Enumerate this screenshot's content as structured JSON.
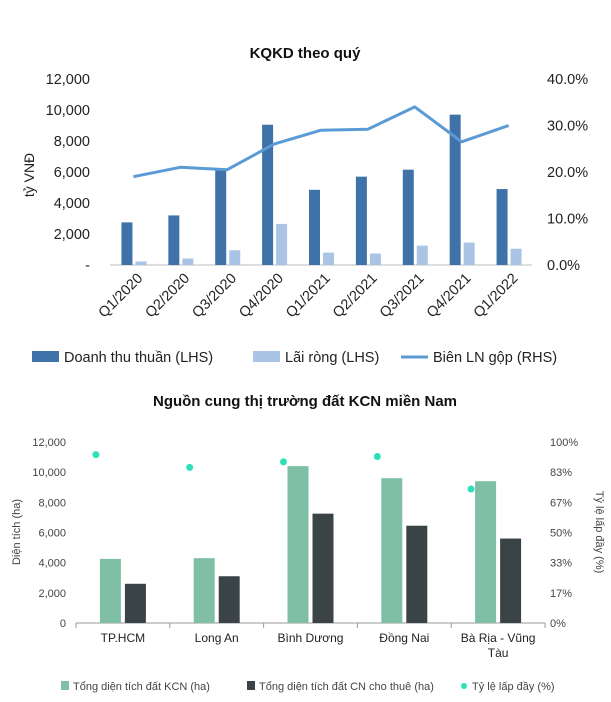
{
  "chart_data": [
    {
      "type": "bar",
      "title": "KQKD theo quý",
      "ylabel": "tỷ VNĐ",
      "ylim": [
        0,
        12000
      ],
      "y2lim": [
        0,
        40
      ],
      "y_ticks": [
        "-",
        "2,000",
        "4,000",
        "6,000",
        "8,000",
        "10,000",
        "12,000"
      ],
      "y2_ticks": [
        "0.0%",
        "10.0%",
        "20.0%",
        "30.0%",
        "40.0%"
      ],
      "categories": [
        "Q1/2020",
        "Q2/2020",
        "Q3/2020",
        "Q4/2020",
        "Q1/2021",
        "Q2/2021",
        "Q3/2021",
        "Q4/2021",
        "Q1/2022"
      ],
      "series": [
        {
          "name": "Doanh thu thuần (LHS)",
          "kind": "bar",
          "axis": "left",
          "color": "#3f72a9",
          "values": [
            2750,
            3200,
            6100,
            9050,
            4850,
            5700,
            6150,
            9700,
            4900
          ]
        },
        {
          "name": "Lãi ròng (LHS)",
          "kind": "bar",
          "axis": "left",
          "color": "#aac4e5",
          "values": [
            230,
            420,
            950,
            2650,
            800,
            740,
            1250,
            1450,
            1050
          ]
        },
        {
          "name": "Biên LN gộp (RHS)",
          "kind": "line",
          "axis": "right",
          "color": "#5b9bd5",
          "values": [
            19.0,
            21.0,
            20.5,
            26.0,
            29.0,
            29.2,
            34.0,
            26.5,
            30.0
          ]
        }
      ],
      "legend_position": "bottom"
    },
    {
      "type": "bar",
      "title": "Nguồn cung thị trường đất KCN miền Nam",
      "ylabel": "Diện tích (ha)",
      "y2label": "Tỷ lệ lấp đầy (%)",
      "ylim": [
        0,
        12000
      ],
      "y2lim": [
        0,
        100
      ],
      "y_ticks": [
        "0",
        "2,000",
        "4,000",
        "6,000",
        "8,000",
        "10,000",
        "12,000"
      ],
      "y2_ticks": [
        "0%",
        "17%",
        "33%",
        "50%",
        "67%",
        "83%",
        "100%"
      ],
      "categories": [
        [
          "TP.HCM"
        ],
        [
          "Long An"
        ],
        [
          "Bình Dương"
        ],
        [
          "Đồng Nai"
        ],
        [
          "Bà Rịa - Vũng",
          "Tàu"
        ]
      ],
      "series": [
        {
          "name": "Tổng diện tích đất KCN (ha)",
          "kind": "bar",
          "axis": "left",
          "color": "#7fbfa6",
          "values": [
            4250,
            4300,
            10400,
            9600,
            9400
          ]
        },
        {
          "name": "Tổng diện tích đất CN cho thuê (ha)",
          "kind": "bar",
          "axis": "left",
          "color": "#3a4446",
          "values": [
            2600,
            3100,
            7250,
            6450,
            5600
          ]
        },
        {
          "name": "Tỷ lệ lấp đầy (%)",
          "kind": "scatter",
          "axis": "right",
          "color": "#2ee0b8",
          "values": [
            93,
            86,
            89,
            92,
            74
          ]
        }
      ],
      "legend_position": "bottom",
      "grid": false
    }
  ]
}
